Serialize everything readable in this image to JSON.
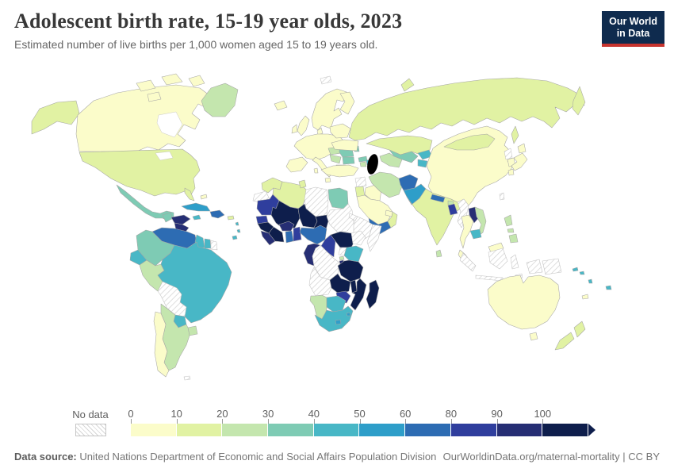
{
  "header": {
    "title": "Adolescent birth rate, 15-19 year olds, 2023",
    "subtitle": "Estimated number of live births per 1,000 women aged 15 to 19 years old.",
    "logo_line1": "Our World",
    "logo_line2": "in Data",
    "logo_bg": "#0f2b4e",
    "logo_accent": "#c7342e"
  },
  "legend": {
    "no_data_label": "No data",
    "ticks": [
      "0",
      "10",
      "20",
      "30",
      "40",
      "50",
      "60",
      "80",
      "90",
      "100"
    ],
    "bins": [
      {
        "range": "0-10",
        "color": "#fbfcca"
      },
      {
        "range": "10-20",
        "color": "#e1f2a3"
      },
      {
        "range": "20-30",
        "color": "#c4e6ae"
      },
      {
        "range": "30-40",
        "color": "#7ecbb4"
      },
      {
        "range": "40-50",
        "color": "#48b7c6"
      },
      {
        "range": "50-60",
        "color": "#2e9ec9"
      },
      {
        "range": "60-80",
        "color": "#2d6cb3"
      },
      {
        "range": "80-90",
        "color": "#2f3e9d"
      },
      {
        "range": "90-100",
        "color": "#262e74"
      },
      {
        "range": "100+",
        "color": "#0e1e4c"
      }
    ]
  },
  "footer": {
    "source_label": "Data source:",
    "source_text": " United Nations Department of Economic and Social Affairs Population Division",
    "link_text": "OurWorldinData.org/maternal-mortality | CC BY"
  },
  "chart_data": {
    "type": "choropleth_map",
    "title": "Adolescent birth rate, 15-19 year olds, 2023",
    "unit": "live births per 1,000 women aged 15 to 19",
    "year": "2023",
    "legend_ranges": [
      "0-10",
      "10-20",
      "20-30",
      "30-40",
      "40-50",
      "50-60",
      "60-80",
      "80-90",
      "90-100",
      "100+"
    ],
    "regions": {
      "canada": {
        "name": "Canada",
        "bin": 0
      },
      "usa": {
        "name": "United States",
        "bin": 1
      },
      "greenland": {
        "name": "Greenland",
        "bin": 2
      },
      "mexico": {
        "name": "Mexico",
        "bin": 3
      },
      "guatemala": {
        "name": "Guatemala",
        "bin": 3
      },
      "honduras": {
        "name": "Honduras",
        "bin": 8
      },
      "nicaragua": {
        "name": "Nicaragua",
        "bin": 8
      },
      "costarica": {
        "name": "Costa Rica",
        "bin": 4
      },
      "panama": {
        "name": "Panama",
        "bin": 5
      },
      "cuba": {
        "name": "Cuba",
        "bin": 5
      },
      "jamaica": {
        "name": "Jamaica",
        "bin": 4
      },
      "hispaniola": {
        "name": "Haiti & Dominican Republic",
        "bin": 6
      },
      "puertorico": {
        "name": "Puerto Rico",
        "bin": 1
      },
      "bahamas": {
        "name": "Bahamas",
        "bin": 0
      },
      "antilles": {
        "name": "Lesser Antilles",
        "bin": 4
      },
      "trinidad": {
        "name": "Trinidad and Tobago",
        "bin": 4
      },
      "venezuela": {
        "name": "Venezuela",
        "bin": 6
      },
      "colombia": {
        "name": "Colombia",
        "bin": 3
      },
      "guyana": {
        "name": "Guyana",
        "bin": 4
      },
      "suriname": {
        "name": "Suriname",
        "bin": 4
      },
      "frguiana": {
        "name": "French Guiana",
        "bin": "nd"
      },
      "ecuador": {
        "name": "Ecuador",
        "bin": 4
      },
      "peru": {
        "name": "Peru",
        "bin": 2
      },
      "brazil": {
        "name": "Brazil",
        "bin": 4
      },
      "bolivia": {
        "name": "Bolivia",
        "bin": "nd"
      },
      "paraguay": {
        "name": "Paraguay",
        "bin": 4
      },
      "uruguay": {
        "name": "Uruguay",
        "bin": 2
      },
      "argentina": {
        "name": "Argentina",
        "bin": 2
      },
      "chile": {
        "name": "Chile",
        "bin": 0
      },
      "falklands": {
        "name": "Falkland Islands",
        "bin": "nd"
      },
      "iceland": {
        "name": "Iceland",
        "bin": 0
      },
      "uk": {
        "name": "United Kingdom",
        "bin": 0
      },
      "ireland": {
        "name": "Ireland",
        "bin": 0
      },
      "scandinavia": {
        "name": "Norway & Sweden",
        "bin": 0
      },
      "finland": {
        "name": "Finland",
        "bin": 0
      },
      "denmark": {
        "name": "Denmark",
        "bin": 0
      },
      "westeurope": {
        "name": "Western & Central Europe",
        "bin": 0
      },
      "iberia": {
        "name": "Spain & Portugal",
        "bin": 0
      },
      "italy": {
        "name": "Italy",
        "bin": 0
      },
      "greece": {
        "name": "Greece",
        "bin": 0
      },
      "hungary_slovakia": {
        "name": "Hungary & Slovakia",
        "bin": 2
      },
      "romania": {
        "name": "Romania",
        "bin": 3
      },
      "serbia": {
        "name": "Western Balkans",
        "bin": 2
      },
      "bulgaria": {
        "name": "Bulgaria",
        "bin": 3
      },
      "moldova": {
        "name": "Moldova",
        "bin": 3
      },
      "ukraine": {
        "name": "Ukraine",
        "bin": 0
      },
      "belarus_baltics": {
        "name": "Belarus & Baltics",
        "bin": 0
      },
      "russia": {
        "name": "Russia",
        "bin": 1
      },
      "svalbard": {
        "name": "Svalbard",
        "bin": "nd"
      },
      "turkey": {
        "name": "Turkey",
        "bin": 0
      },
      "syria": {
        "name": "Syria",
        "bin": "nd"
      },
      "jordan_israel": {
        "name": "Jordan & Israel",
        "bin": 1
      },
      "iraq": {
        "name": "Iraq",
        "bin": 0
      },
      "saudi": {
        "name": "Saudi Arabia",
        "bin": 0
      },
      "yemen": {
        "name": "Yemen",
        "bin": 6
      },
      "oman": {
        "name": "Oman",
        "bin": 1
      },
      "uae": {
        "name": "United Arab Emirates",
        "bin": 0
      },
      "iran": {
        "name": "Iran",
        "bin": 2
      },
      "afghanistan": {
        "name": "Afghanistan",
        "bin": 6
      },
      "pakistan": {
        "name": "Pakistan",
        "bin": 5
      },
      "georgia": {
        "name": "Georgia",
        "bin": 3
      },
      "azerbaijan": {
        "name": "Azerbaijan",
        "bin": 4
      },
      "armenia": {
        "name": "Armenia",
        "bin": 2
      },
      "kazakhstan": {
        "name": "Kazakhstan",
        "bin": 1
      },
      "uzbekistan": {
        "name": "Uzbekistan",
        "bin": 3
      },
      "turkmenistan": {
        "name": "Turkmenistan",
        "bin": 2
      },
      "kyrgyzstan": {
        "name": "Kyrgyzstan",
        "bin": 4
      },
      "tajikistan": {
        "name": "Tajikistan",
        "bin": 4
      },
      "india": {
        "name": "India",
        "bin": 1
      },
      "nepal": {
        "name": "Nepal",
        "bin": 6
      },
      "bhutan": {
        "name": "Bhutan",
        "bin": 2
      },
      "bangladesh": {
        "name": "Bangladesh",
        "bin": 7
      },
      "srilanka": {
        "name": "Sri Lanka",
        "bin": 2
      },
      "myanmar": {
        "name": "Myanmar",
        "bin": "nd"
      },
      "thailand": {
        "name": "Thailand",
        "bin": 0
      },
      "laos": {
        "name": "Laos",
        "bin": 8
      },
      "vietnam": {
        "name": "Vietnam",
        "bin": 2
      },
      "cambodia": {
        "name": "Cambodia",
        "bin": 4
      },
      "malaysia": {
        "name": "Malaysia",
        "bin": 0
      },
      "indonesia": {
        "name": "Indonesia",
        "bin": "nd"
      },
      "philippines": {
        "name": "Philippines",
        "bin": 2
      },
      "china": {
        "name": "China",
        "bin": 0
      },
      "mongolia": {
        "name": "Mongolia",
        "bin": 1
      },
      "nkorea": {
        "name": "North Korea",
        "bin": "nd"
      },
      "skorea": {
        "name": "South Korea",
        "bin": 0
      },
      "japan": {
        "name": "Japan",
        "bin": 0
      },
      "taiwan": {
        "name": "Taiwan",
        "bin": "nd"
      },
      "morocco": {
        "name": "Morocco",
        "bin": 1
      },
      "wsahara": {
        "name": "Western Sahara",
        "bin": "nd"
      },
      "algeria": {
        "name": "Algeria",
        "bin": 1
      },
      "tunisia": {
        "name": "Tunisia",
        "bin": 1
      },
      "libya": {
        "name": "Libya",
        "bin": "nd"
      },
      "egypt": {
        "name": "Egypt",
        "bin": 3
      },
      "mauritania": {
        "name": "Mauritania",
        "bin": 7
      },
      "mali": {
        "name": "Mali",
        "bin": 9
      },
      "niger": {
        "name": "Niger",
        "bin": 9
      },
      "chad": {
        "name": "Chad",
        "bin": 9
      },
      "sudan": {
        "name": "Sudan",
        "bin": "nd"
      },
      "eritrea": {
        "name": "Eritrea",
        "bin": "nd"
      },
      "ethiopia": {
        "name": "Ethiopia",
        "bin": "nd"
      },
      "somalia": {
        "name": "Somalia",
        "bin": "nd"
      },
      "ssudan": {
        "name": "South Sudan",
        "bin": "nd"
      },
      "senegal": {
        "name": "Senegal",
        "bin": 7
      },
      "guinea": {
        "name": "Guinea",
        "bin": 9
      },
      "sierraleone_liberia": {
        "name": "Sierra Leone & Liberia",
        "bin": 8
      },
      "burkina": {
        "name": "Burkina Faso",
        "bin": 8
      },
      "ivorycoast": {
        "name": "Cote d'Ivoire",
        "bin": 9
      },
      "ghana": {
        "name": "Ghana",
        "bin": 6
      },
      "togo_benin": {
        "name": "Togo & Benin",
        "bin": 7
      },
      "nigeria": {
        "name": "Nigeria",
        "bin": 6
      },
      "cameroon": {
        "name": "Cameroon",
        "bin": 7
      },
      "car": {
        "name": "Central African Republic",
        "bin": 9
      },
      "gabon_congo": {
        "name": "Gabon & Congo",
        "bin": 8
      },
      "drc": {
        "name": "Democratic Republic of Congo",
        "bin": "nd"
      },
      "uganda": {
        "name": "Uganda",
        "bin": "nd"
      },
      "kenya": {
        "name": "Kenya",
        "bin": 4
      },
      "rwanda": {
        "name": "Rwanda",
        "bin": 2
      },
      "burundi": {
        "name": "Burundi",
        "bin": 8
      },
      "tanzania": {
        "name": "Tanzania",
        "bin": 9
      },
      "angola": {
        "name": "Angola",
        "bin": "nd"
      },
      "zambia": {
        "name": "Zambia",
        "bin": 9
      },
      "malawi": {
        "name": "Malawi",
        "bin": 9
      },
      "mozambique": {
        "name": "Mozambique",
        "bin": 9
      },
      "zimbabwe": {
        "name": "Zimbabwe",
        "bin": 7
      },
      "madagascar": {
        "name": "Madagascar",
        "bin": 9
      },
      "namibia": {
        "name": "Namibia",
        "bin": 2
      },
      "botswana": {
        "name": "Botswana",
        "bin": 4
      },
      "southafrica": {
        "name": "South Africa",
        "bin": 4
      },
      "lesotho": {
        "name": "Lesotho",
        "bin": 5
      },
      "eswatini": {
        "name": "Eswatini",
        "bin": 5
      },
      "australia": {
        "name": "Australia",
        "bin": 0
      },
      "nz": {
        "name": "New Zealand",
        "bin": 1
      },
      "png": {
        "name": "Papua New Guinea",
        "bin": "nd"
      },
      "newcaledonia": {
        "name": "New Caledonia",
        "bin": 0
      },
      "fiji": {
        "name": "Fiji",
        "bin": 4
      },
      "solomons": {
        "name": "Solomon Islands",
        "bin": 4
      },
      "vanuatu": {
        "name": "Vanuatu",
        "bin": 4
      }
    }
  }
}
